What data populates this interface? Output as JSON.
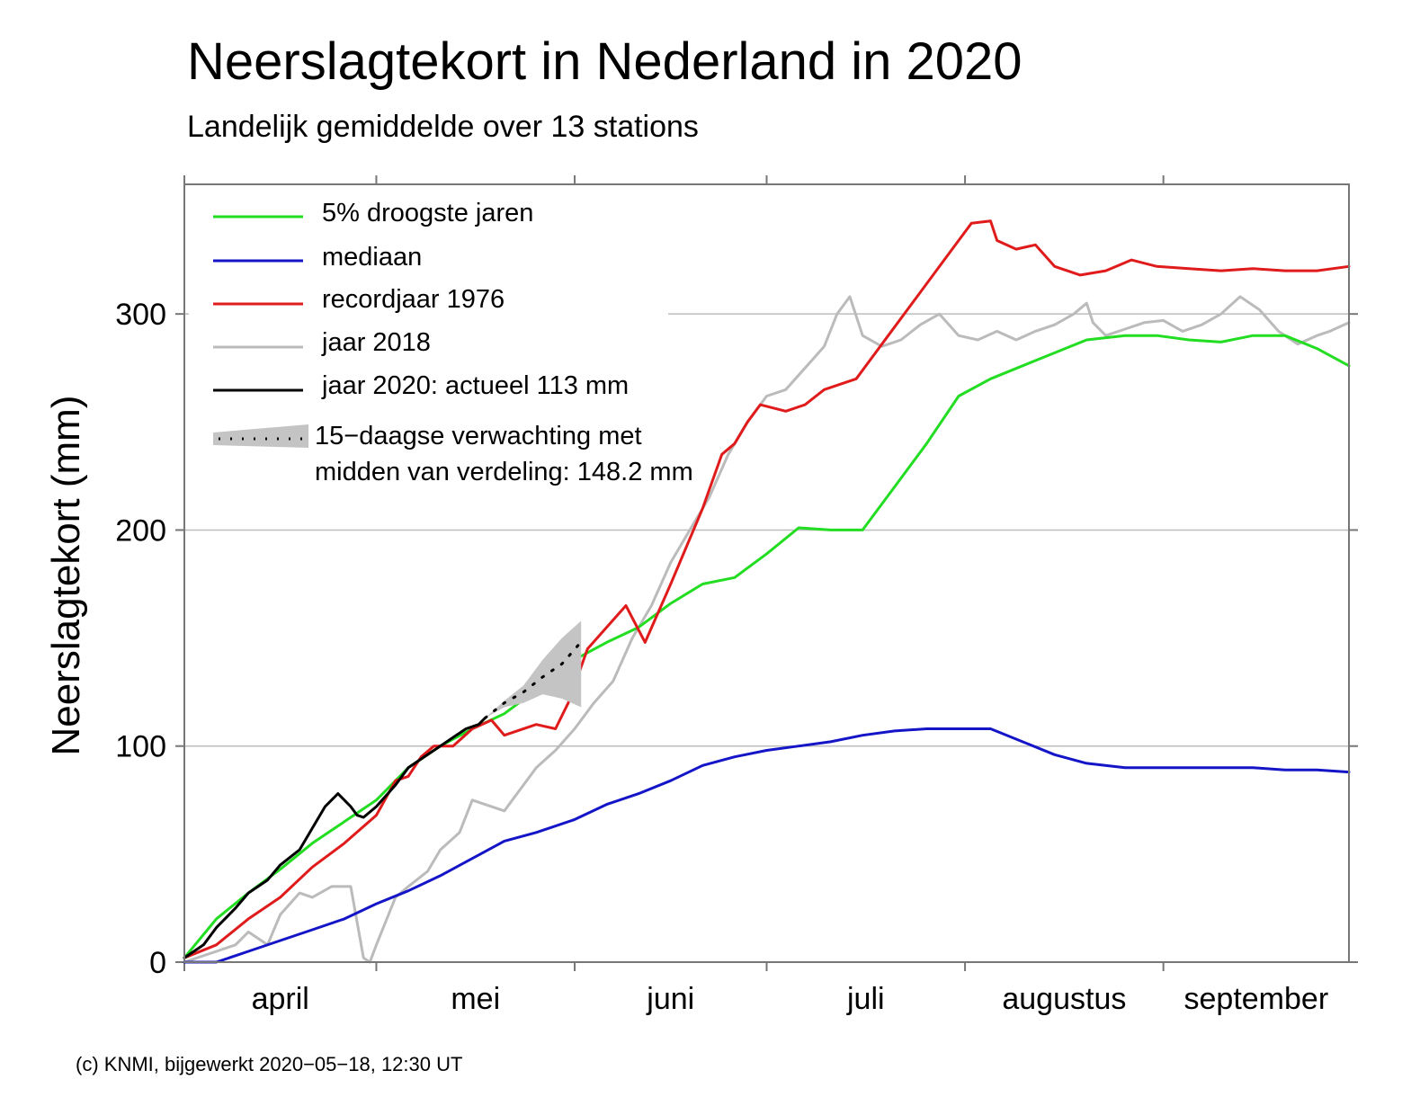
{
  "chart_data": {
    "type": "line",
    "title": "Neerslagtekort in Nederland in 2020",
    "subtitle": "Landelijk gemiddelde over 13 stations",
    "ylabel": "Neerslagtekort (mm)",
    "xlabel": "",
    "ylim": [
      0,
      360
    ],
    "y_ticks": [
      0,
      100,
      200,
      300
    ],
    "x_unit": "days since 1 April",
    "xlim": [
      0,
      182
    ],
    "month_labels": [
      "april",
      "mei",
      "juni",
      "juli",
      "augustus",
      "september"
    ],
    "month_starts": [
      0,
      30,
      61,
      91,
      122,
      153
    ],
    "grid": "horizontal",
    "legend_position": "top-left",
    "footer": "(c) KNMI, bijgewerkt 2020−05−18, 12:30 UT",
    "series": [
      {
        "name": "5% droogste jaren",
        "color": "#22dd22",
        "x": [
          0,
          5,
          10,
          15,
          20,
          25,
          30,
          35,
          40,
          45,
          50,
          55,
          61,
          66,
          71,
          76,
          81,
          86,
          91,
          96,
          101,
          106,
          111,
          116,
          121,
          126,
          131,
          136,
          141,
          147,
          152,
          157,
          162,
          167,
          172,
          177,
          182
        ],
        "y": [
          2,
          20,
          32,
          43,
          55,
          65,
          75,
          90,
          100,
          108,
          115,
          126,
          140,
          148,
          155,
          166,
          175,
          178,
          189,
          201,
          200,
          200,
          220,
          240,
          262,
          270,
          276,
          282,
          288,
          290,
          290,
          288,
          287,
          290,
          290,
          284,
          276
        ]
      },
      {
        "name": "mediaan",
        "color": "#1515c8",
        "x": [
          0,
          5,
          10,
          15,
          20,
          25,
          30,
          35,
          40,
          45,
          50,
          55,
          61,
          66,
          71,
          76,
          81,
          86,
          91,
          96,
          101,
          106,
          111,
          116,
          121,
          126,
          131,
          136,
          141,
          147,
          152,
          157,
          162,
          167,
          172,
          177,
          182
        ],
        "y": [
          0,
          0,
          5,
          10,
          15,
          20,
          27,
          33,
          40,
          48,
          56,
          60,
          66,
          73,
          78,
          84,
          91,
          95,
          98,
          100,
          102,
          105,
          107,
          108,
          108,
          108,
          102,
          96,
          92,
          90,
          90,
          90,
          90,
          90,
          89,
          89,
          88
        ]
      },
      {
        "name": "recordjaar 1976",
        "color": "#e01b1b",
        "x": [
          0,
          5,
          10,
          15,
          20,
          25,
          30,
          33,
          35,
          37,
          39,
          42,
          45,
          48,
          50,
          55,
          58,
          60,
          63,
          66,
          69,
          72,
          76,
          81,
          84,
          86,
          88,
          90,
          94,
          97,
          100,
          105,
          110,
          115,
          120,
          123,
          126,
          127,
          130,
          133,
          136,
          140,
          144,
          148,
          152,
          157,
          162,
          167,
          172,
          177,
          182
        ],
        "y": [
          2,
          8,
          20,
          30,
          44,
          55,
          68,
          84,
          86,
          95,
          100,
          100,
          108,
          112,
          105,
          110,
          108,
          120,
          145,
          155,
          165,
          148,
          175,
          210,
          235,
          240,
          250,
          258,
          255,
          258,
          265,
          270,
          290,
          310,
          330,
          342,
          343,
          334,
          330,
          332,
          322,
          318,
          320,
          325,
          322,
          321,
          320,
          321,
          320,
          320,
          322
        ]
      },
      {
        "name": "jaar 2018",
        "color": "#bbbbbb",
        "x": [
          0,
          5,
          8,
          10,
          13,
          15,
          18,
          20,
          23,
          26,
          28,
          29,
          30,
          33,
          35,
          38,
          40,
          43,
          45,
          50,
          53,
          55,
          58,
          61,
          64,
          67,
          70,
          73,
          76,
          79,
          82,
          85,
          88,
          91,
          94,
          97,
          100,
          102,
          104,
          106,
          109,
          112,
          115,
          118,
          121,
          124,
          127,
          130,
          133,
          136,
          139,
          141,
          142,
          144,
          147,
          150,
          153,
          156,
          159,
          162,
          165,
          168,
          171,
          174,
          177,
          179,
          182
        ],
        "y": [
          0,
          5,
          8,
          14,
          8,
          22,
          32,
          30,
          35,
          35,
          2,
          0,
          8,
          30,
          35,
          42,
          52,
          60,
          75,
          70,
          82,
          90,
          98,
          108,
          120,
          130,
          150,
          165,
          185,
          200,
          215,
          235,
          250,
          262,
          265,
          275,
          285,
          300,
          308,
          290,
          285,
          288,
          295,
          300,
          290,
          288,
          292,
          288,
          292,
          295,
          300,
          305,
          296,
          290,
          293,
          296,
          297,
          292,
          295,
          300,
          308,
          302,
          292,
          286,
          290,
          292,
          296
        ]
      },
      {
        "name": "jaar 2020: actueel 113 mm",
        "color": "#000000",
        "x": [
          0,
          3,
          5,
          8,
          10,
          13,
          15,
          18,
          20,
          22,
          24,
          26,
          27,
          28,
          30,
          33,
          35,
          38,
          40,
          42,
          44,
          46,
          47
        ],
        "y": [
          2,
          8,
          16,
          25,
          32,
          38,
          45,
          52,
          62,
          72,
          78,
          72,
          68,
          67,
          72,
          82,
          90,
          96,
          100,
          104,
          108,
          110,
          113
        ]
      }
    ],
    "forecast": {
      "name": "15−daagse verwachting met",
      "name_line2": "midden van verdeling: 148.2 mm",
      "band_color": "#c4c4c4",
      "x": [
        47,
        50,
        53,
        56,
        59,
        62
      ],
      "median": [
        113,
        120,
        125,
        132,
        138,
        148.2
      ],
      "lower": [
        113,
        118,
        120,
        124,
        122,
        118
      ],
      "upper": [
        113,
        121,
        128,
        140,
        150,
        158
      ]
    }
  }
}
